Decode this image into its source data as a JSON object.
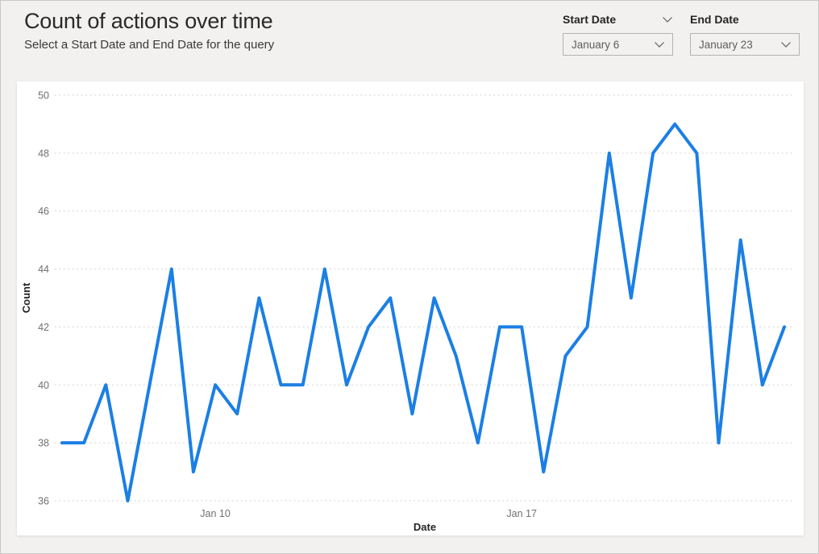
{
  "header": {
    "title": "Count of actions over time",
    "subtitle": "Select a Start Date and End Date for the query"
  },
  "slicers": {
    "start_date": {
      "label": "Start Date",
      "value": "January 6"
    },
    "end_date": {
      "label": "End Date",
      "value": "January 23"
    }
  },
  "icons": {
    "chevron_down": "⌄"
  },
  "colors": {
    "accent_line": "#1b7fe4",
    "page_background": "#f2f1f0",
    "card_background": "#ffffff",
    "gridline": "#d6d4d2",
    "tick_text": "#70706f",
    "axis_title_text": "#252423"
  },
  "chart_data": {
    "type": "line",
    "title": "",
    "xlabel": "Date",
    "ylabel": "Count",
    "ylim": [
      36,
      50
    ],
    "y_ticks": [
      36,
      38,
      40,
      42,
      44,
      46,
      48,
      50
    ],
    "x_ticks": [
      {
        "label": "Jan 10",
        "index": 7
      },
      {
        "label": "Jan 17",
        "index": 21
      }
    ],
    "grid": "dotted-horizontal",
    "legend": "none",
    "series": [
      {
        "name": "Count",
        "color": "#1b7fe4",
        "values": [
          38,
          38,
          40,
          36,
          40,
          44,
          37,
          40,
          39,
          43,
          40,
          40,
          44,
          40,
          42,
          43,
          39,
          43,
          41,
          38,
          42,
          42,
          37,
          41,
          42,
          48,
          43,
          48,
          49,
          48,
          38,
          45,
          40,
          42
        ]
      }
    ]
  }
}
